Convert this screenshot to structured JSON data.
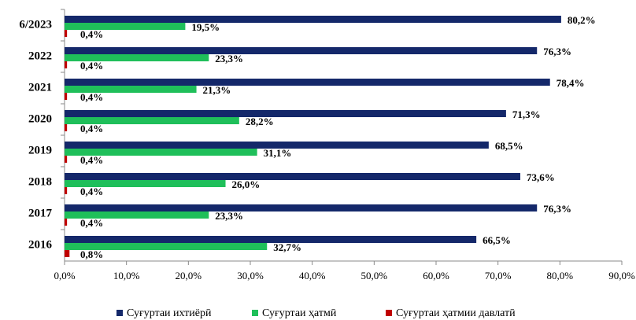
{
  "chart_data": {
    "type": "bar",
    "orientation": "horizontal",
    "categories": [
      "6/2023",
      "2022",
      "2021",
      "2020",
      "2019",
      "2018",
      "2017",
      "2016"
    ],
    "series": [
      {
        "name": "Суғуртаи ихтиёрӣ",
        "color": "#14286a",
        "values": [
          80.2,
          76.3,
          78.4,
          71.3,
          68.5,
          73.6,
          76.3,
          66.5
        ],
        "value_labels": [
          "80,2%",
          "76,3%",
          "78,4%",
          "71,3%",
          "68,5%",
          "73,6%",
          "76,3%",
          "66,5%"
        ]
      },
      {
        "name": "Суғуртаи ҳатмӣ",
        "color": "#1fbf5a",
        "values": [
          19.5,
          23.3,
          21.3,
          28.2,
          31.1,
          26.0,
          23.3,
          32.7
        ],
        "value_labels": [
          "19,5%",
          "23,3%",
          "21,3%",
          "28,2%",
          "31,1%",
          "26,0%",
          "23,3%",
          "32,7%"
        ]
      },
      {
        "name": "Суғуртаи ҳатмии давлатӣ",
        "color": "#c00000",
        "values": [
          0.4,
          0.4,
          0.4,
          0.4,
          0.4,
          0.4,
          0.4,
          0.8
        ],
        "value_labels": [
          "0,4%",
          "0,4%",
          "0,4%",
          "0,4%",
          "0,4%",
          "0,4%",
          "0,4%",
          "0,8%"
        ]
      }
    ],
    "xlim": [
      0,
      90
    ],
    "xticks": [
      {
        "value": 0,
        "label": "0,0%"
      },
      {
        "value": 10,
        "label": "10,0%"
      },
      {
        "value": 20,
        "label": "20,0%"
      },
      {
        "value": 30,
        "label": "30,0%"
      },
      {
        "value": 40,
        "label": "40,0%"
      },
      {
        "value": 50,
        "label": "50,0%"
      },
      {
        "value": 60,
        "label": "60,0%"
      },
      {
        "value": 70,
        "label": "70,0%"
      },
      {
        "value": 80,
        "label": "80,0%"
      },
      {
        "value": 90,
        "label": "90,0%"
      }
    ],
    "legend": "bottom"
  }
}
